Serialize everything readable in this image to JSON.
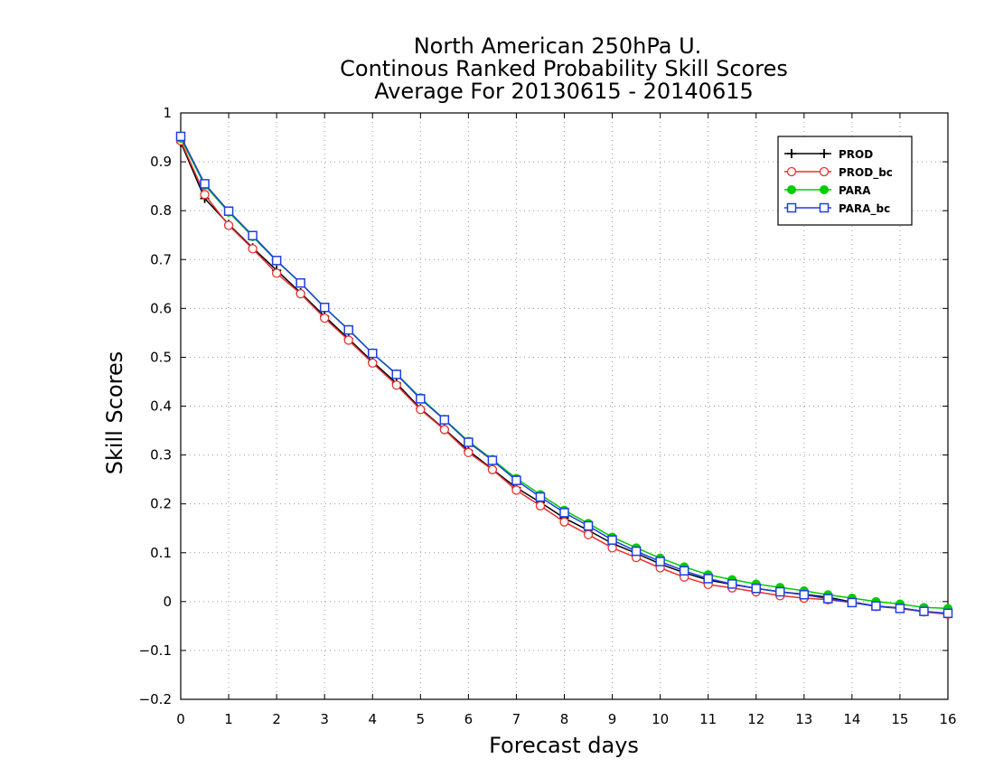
{
  "chart_data": {
    "type": "line",
    "title_lines": [
      "North American 250hPa U.",
      "Continous Ranked Probability Skill Scores",
      "Average For 20130615 - 20140615"
    ],
    "xlabel": "Forecast days",
    "ylabel": "Skill Scores",
    "xlim": [
      0,
      16
    ],
    "ylim": [
      -0.2,
      1
    ],
    "xticks": [
      0,
      1,
      2,
      3,
      4,
      5,
      6,
      7,
      8,
      9,
      10,
      11,
      12,
      13,
      14,
      15,
      16
    ],
    "yticks": [
      -0.2,
      -0.1,
      0,
      0.1,
      0.2,
      0.3,
      0.4,
      0.5,
      0.6,
      0.7,
      0.8,
      0.9,
      1
    ],
    "ytick_labels": [
      "−0.2",
      "−0.1",
      "0",
      "0.1",
      "0.2",
      "0.3",
      "0.4",
      "0.5",
      "0.6",
      "0.7",
      "0.8",
      "0.9",
      "1"
    ],
    "grid": true,
    "legend_position": "top-right",
    "x": [
      0,
      0.5,
      1,
      1.5,
      2,
      2.5,
      3,
      3.5,
      4,
      4.5,
      5,
      5.5,
      6,
      6.5,
      7,
      7.5,
      8,
      8.5,
      9,
      9.5,
      10,
      10.5,
      11,
      11.5,
      12,
      12.5,
      13,
      13.5,
      14,
      14.5,
      15,
      15.5,
      16
    ],
    "series": [
      {
        "name": "PROD",
        "color": "#000000",
        "marker": "plus",
        "values": [
          0.94,
          0.825,
          0.772,
          0.724,
          0.678,
          0.632,
          0.584,
          0.538,
          0.491,
          0.447,
          0.395,
          0.353,
          0.309,
          0.271,
          0.233,
          0.203,
          0.171,
          0.146,
          0.119,
          0.099,
          0.077,
          0.059,
          0.044,
          0.035,
          0.027,
          0.02,
          0.015,
          0.009,
          -0.001,
          -0.009,
          -0.013,
          -0.02,
          -0.025
        ]
      },
      {
        "name": "PROD_bc",
        "color": "#e83030",
        "marker": "circle",
        "values": [
          0.943,
          0.833,
          0.77,
          0.722,
          0.672,
          0.63,
          0.58,
          0.535,
          0.488,
          0.443,
          0.393,
          0.352,
          0.305,
          0.27,
          0.228,
          0.196,
          0.163,
          0.137,
          0.11,
          0.09,
          0.069,
          0.05,
          0.035,
          0.028,
          0.02,
          0.012,
          0.007,
          0.004,
          -0.002,
          -0.01,
          -0.014,
          -0.021,
          -0.026
        ]
      },
      {
        "name": "PARA",
        "color": "#00cc00",
        "marker": "filled-circle",
        "values": [
          0.948,
          0.852,
          0.797,
          0.747,
          0.697,
          0.652,
          0.602,
          0.557,
          0.508,
          0.466,
          0.417,
          0.373,
          0.328,
          0.291,
          0.252,
          0.219,
          0.187,
          0.16,
          0.132,
          0.11,
          0.089,
          0.071,
          0.055,
          0.045,
          0.036,
          0.029,
          0.022,
          0.014,
          0.007,
          0.0,
          -0.005,
          -0.012,
          -0.014
        ]
      },
      {
        "name": "PARA_bc",
        "color": "#1f3fe0",
        "marker": "square",
        "values": [
          0.952,
          0.855,
          0.799,
          0.749,
          0.698,
          0.652,
          0.602,
          0.556,
          0.508,
          0.465,
          0.415,
          0.372,
          0.326,
          0.289,
          0.248,
          0.214,
          0.182,
          0.155,
          0.126,
          0.103,
          0.082,
          0.063,
          0.047,
          0.036,
          0.027,
          0.02,
          0.014,
          0.006,
          -0.002,
          -0.009,
          -0.014,
          -0.02,
          -0.024
        ]
      }
    ]
  }
}
